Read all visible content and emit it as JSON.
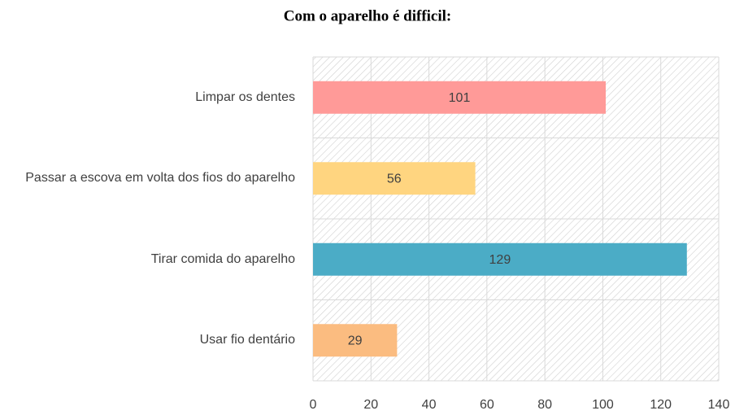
{
  "chart_data": {
    "type": "hbar",
    "title": "Com o aparelho é difficil:",
    "categories": [
      "Limpar os dentes",
      "Passar a escova em volta dos fios do aparelho",
      "Tirar comida do aparelho",
      "Usar fio dentário"
    ],
    "values": [
      101,
      56,
      129,
      29
    ],
    "colors": [
      "#ff9a98",
      "#ffd580",
      "#4bacc6",
      "#fbbc80"
    ],
    "xlim": [
      0,
      140
    ],
    "xticks": [
      0,
      20,
      40,
      60,
      80,
      100,
      120,
      140
    ],
    "grid": true
  }
}
